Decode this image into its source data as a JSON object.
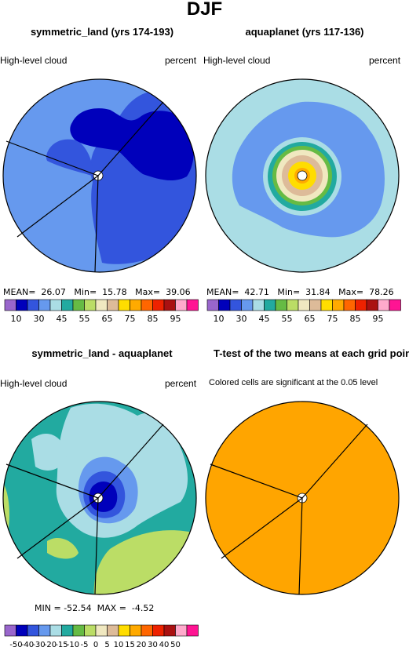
{
  "title": "DJF",
  "panels": [
    {
      "title": "symmetric_land (yrs 174-193)",
      "left_label": "High-level cloud",
      "right_label": "percent",
      "stats": {
        "mean_label": "MEAN=",
        "mean": "26.07",
        "min_label": "Min=",
        "min": "15.78",
        "max_label": "Max=",
        "max": "39.06"
      }
    },
    {
      "title": "aquaplanet (yrs 117-136)",
      "left_label": "High-level cloud",
      "right_label": "percent",
      "stats": {
        "mean_label": "MEAN=",
        "mean": "42.71",
        "min_label": "Min=",
        "min": "31.84",
        "max_label": "Max=",
        "max": "78.26"
      }
    },
    {
      "title": "symmetric_land - aquaplanet",
      "left_label": "High-level cloud",
      "right_label": "percent",
      "stats": {
        "min_label": "MIN =",
        "min": "-52.54",
        "max_label": "MAX =",
        "max": "-4.52"
      }
    },
    {
      "title": "T-test of the two means at each grid point",
      "left_label": "Colored cells are significant at the 0.05 level"
    }
  ],
  "colorbar_top": {
    "colors": [
      "#9966cc",
      "#0000bb",
      "#3355dd",
      "#6699ee",
      "#aadde5",
      "#22aaa0",
      "#66bb44",
      "#bbdd66",
      "#f0e8c0",
      "#ddbb99",
      "#ffdd00",
      "#ffaa00",
      "#ff6600",
      "#ee2200",
      "#aa1111",
      "#ffaacc",
      "#ff1493"
    ],
    "tick_labels": [
      "10",
      "30",
      "45",
      "55",
      "65",
      "75",
      "85",
      "95"
    ]
  },
  "colorbar_diff": {
    "colors": [
      "#9966cc",
      "#0000bb",
      "#3355dd",
      "#6699ee",
      "#aadde5",
      "#22aaa0",
      "#66bb44",
      "#bbdd66",
      "#f0e8c0",
      "#ddbb99",
      "#ffdd00",
      "#ffaa00",
      "#ff6600",
      "#ee2200",
      "#aa1111",
      "#ffaacc",
      "#ff1493"
    ],
    "tick_labels": [
      "-50",
      "-40",
      "-30",
      "-20",
      "-15",
      "-10",
      "-5",
      "0",
      "5",
      "10",
      "15",
      "20",
      "30",
      "40",
      "50"
    ]
  },
  "chart_data": [
    {
      "type": "heatmap",
      "title": "symmetric_land (yrs 174-193)",
      "variable": "High-level cloud",
      "units": "percent",
      "mean": 26.07,
      "min": 15.78,
      "max": 39.06
    },
    {
      "type": "heatmap",
      "title": "aquaplanet (yrs 117-136)",
      "variable": "High-level cloud",
      "units": "percent",
      "mean": 42.71,
      "min": 31.84,
      "max": 78.26
    },
    {
      "type": "heatmap",
      "title": "symmetric_land - aquaplanet",
      "variable": "High-level cloud",
      "units": "percent",
      "min": -52.54,
      "max": -4.52
    },
    {
      "type": "heatmap",
      "title": "T-test of the two means at each grid point",
      "note": "Colored cells are significant at the 0.05 level"
    }
  ]
}
